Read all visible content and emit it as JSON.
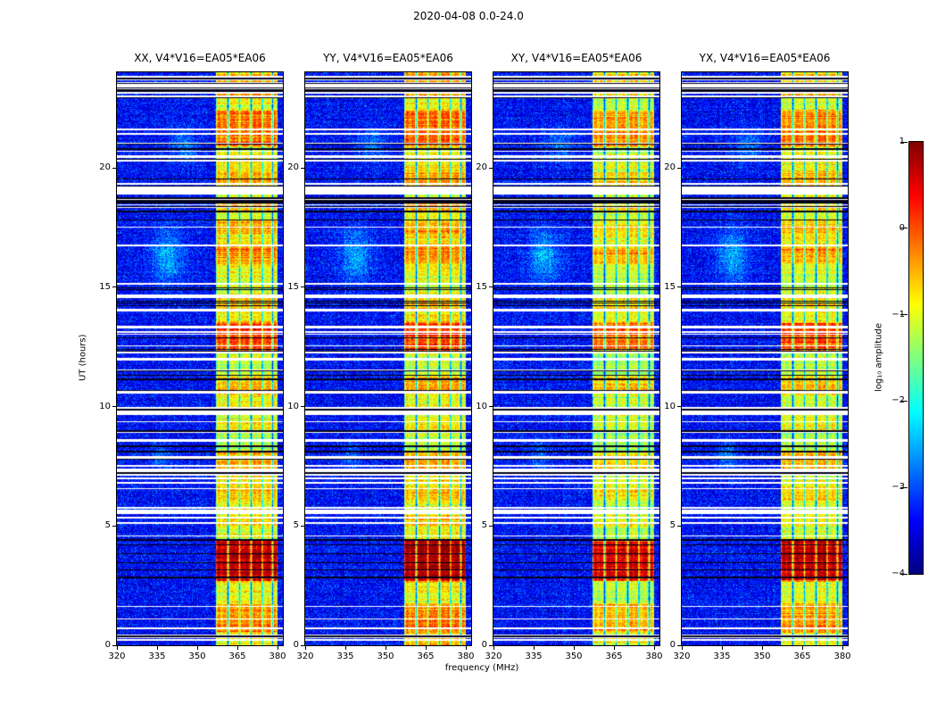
{
  "chart_data": {
    "type": "heatmap",
    "title": "2020-04-08 0.0-24.0",
    "panels": [
      {
        "label": "XX, V4*V16=EA05*EA06",
        "band_offset": 0
      },
      {
        "label": "YY, V4*V16=EA05*EA06",
        "band_offset": 0.05
      },
      {
        "label": "XY, V4*V16=EA05*EA06",
        "band_offset": -0.2
      },
      {
        "label": "YX, V4*V16=EA05*EA06",
        "band_offset": -0.08
      }
    ],
    "x": {
      "label": "frequency (MHz)",
      "ticks": [
        320,
        335,
        350,
        365,
        380
      ],
      "range": [
        320,
        382
      ]
    },
    "y": {
      "label": "UT (hours)",
      "ticks": [
        0,
        5,
        10,
        15,
        20
      ],
      "range": [
        0,
        24
      ]
    },
    "colorbar": {
      "label": "log₁₀ amplitude",
      "min": -4,
      "max": 1,
      "ticks": [
        1,
        0,
        -1,
        -2,
        -3,
        -4
      ],
      "colormap": "jet"
    },
    "background_level": -3.35,
    "noise_sigma": 0.32,
    "rfi_band": {
      "f_start": 357,
      "f_stop": 380,
      "base_level": -1.0,
      "channel_gap_freqs": [
        361.5,
        365.8,
        370.2,
        374.3,
        378.2
      ],
      "bursts": [
        {
          "t_start": 0.6,
          "t_end": 1.7,
          "boost": 0.6
        },
        {
          "t_start": 2.75,
          "t_end": 4.35,
          "boost": 1.5
        },
        {
          "t_start": 5.0,
          "t_end": 5.45,
          "boost": 0.35
        },
        {
          "t_start": 6.1,
          "t_end": 6.5,
          "boost": 0.3
        },
        {
          "t_start": 7.4,
          "t_end": 8.05,
          "boost": 0.55
        },
        {
          "t_start": 9.0,
          "t_end": 9.4,
          "boost": 0.3
        },
        {
          "t_start": 10.55,
          "t_end": 11.2,
          "boost": 0.55
        },
        {
          "t_start": 12.35,
          "t_end": 13.45,
          "boost": 1.05
        },
        {
          "t_start": 14.15,
          "t_end": 14.6,
          "boost": 0.4
        },
        {
          "t_start": 16.05,
          "t_end": 16.65,
          "boost": 0.45
        },
        {
          "t_start": 17.3,
          "t_end": 17.75,
          "boost": 0.35
        },
        {
          "t_start": 18.2,
          "t_end": 18.6,
          "boost": 0.45
        },
        {
          "t_start": 19.3,
          "t_end": 19.75,
          "boost": 0.4
        },
        {
          "t_start": 20.95,
          "t_end": 22.35,
          "boost": 0.95
        },
        {
          "t_start": 23.0,
          "t_end": 23.9,
          "boost": 0.55
        }
      ]
    },
    "time_gaps": [
      {
        "t": 9.82,
        "h": 0.32
      },
      {
        "t": 19.05,
        "h": 0.38
      },
      {
        "t": 5.62,
        "h": 0.2
      },
      {
        "t": 23.32,
        "h": 0.12
      },
      {
        "t": 0.35,
        "h": 0.08
      },
      {
        "t": 6.98,
        "h": 0.08
      },
      {
        "t": 8.6,
        "h": 0.1
      },
      {
        "t": 11.5,
        "h": 0.08
      },
      {
        "t": 14.05,
        "h": 0.1
      },
      {
        "t": 16.75,
        "h": 0.08
      },
      {
        "t": 18.35,
        "h": 0.08
      },
      {
        "t": 21.6,
        "h": 0.08
      },
      {
        "t": 12.0,
        "h": 0.08
      },
      {
        "t": 7.15,
        "h": 0.06
      }
    ],
    "white_line_clusters": [
      {
        "range": [
          22.9,
          24.0
        ],
        "n": 9
      },
      {
        "range": [
          0.2,
          2.1
        ],
        "n": 6
      },
      {
        "range": [
          4.9,
          6.0
        ],
        "n": 3
      },
      {
        "range": [
          6.4,
          9.6
        ],
        "n": 9
      },
      {
        "range": [
          10.4,
          15.4
        ],
        "n": 14
      },
      {
        "range": [
          16.6,
          19.6
        ],
        "n": 8
      },
      {
        "range": [
          20.2,
          22.8
        ],
        "n": 7
      },
      {
        "range": [
          0,
          24
        ],
        "n": 8
      }
    ],
    "dark_line_clusters": [
      {
        "range": [
          22.8,
          24.0
        ],
        "n": 7
      },
      {
        "range": [
          2.5,
          4.5
        ],
        "n": 6
      },
      {
        "range": [
          10.4,
          15.3
        ],
        "n": 10
      },
      {
        "range": [
          6.6,
          9.2
        ],
        "n": 5
      },
      {
        "range": [
          16.8,
          21.6
        ],
        "n": 7
      },
      {
        "range": [
          0,
          24
        ],
        "n": 10
      }
    ],
    "blobs": [
      {
        "t": 16.3,
        "f": 339,
        "rt": 1.1,
        "rf": 6,
        "amp": 0.85
      },
      {
        "t": 20.9,
        "f": 345,
        "rt": 0.7,
        "rf": 5,
        "amp": 0.6
      },
      {
        "t": 7.9,
        "f": 337,
        "rt": 0.6,
        "rf": 4,
        "amp": 0.5
      }
    ],
    "seed": 20200408
  }
}
